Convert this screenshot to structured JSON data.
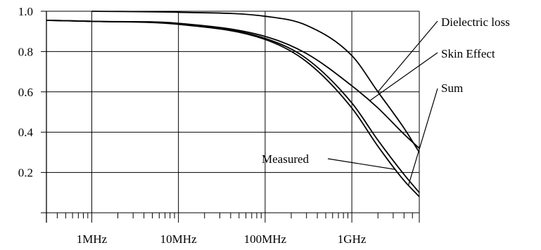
{
  "chart_data": {
    "type": "line",
    "title": "",
    "xlabel": "",
    "ylabel": "",
    "x_scale": "log",
    "xlim": [
      300000,
      6000000000
    ],
    "ylim": [
      0,
      1.0
    ],
    "grid": true,
    "legend": "none",
    "x_ticks": [
      {
        "value": 1000000,
        "label": "1MHz"
      },
      {
        "value": 10000000,
        "label": "10MHz"
      },
      {
        "value": 100000000,
        "label": "100MHz"
      },
      {
        "value": 1000000000,
        "label": "1GHz"
      }
    ],
    "y_ticks": [
      {
        "value": 0.2,
        "label": "0.2"
      },
      {
        "value": 0.4,
        "label": "0.4"
      },
      {
        "value": 0.6,
        "label": "0.6"
      },
      {
        "value": 0.8,
        "label": "0.8"
      },
      {
        "value": 1.0,
        "label": "1.0"
      }
    ],
    "series": [
      {
        "name": "Dielectric loss",
        "x": [
          1000000,
          10000000,
          100000000,
          300000000,
          1000000000,
          2000000000,
          4000000000,
          6000000000
        ],
        "y": [
          1.0,
          0.995,
          0.975,
          0.93,
          0.78,
          0.6,
          0.42,
          0.3
        ]
      },
      {
        "name": "Skin Effect",
        "x": [
          300000,
          1000000,
          10000000,
          100000000,
          300000000,
          1000000000,
          2000000000,
          4000000000,
          6000000000
        ],
        "y": [
          0.955,
          0.95,
          0.94,
          0.875,
          0.79,
          0.63,
          0.52,
          0.39,
          0.32
        ]
      },
      {
        "name": "Sum",
        "x": [
          300000,
          1000000,
          10000000,
          100000000,
          300000000,
          1000000000,
          2000000000,
          4000000000,
          6000000000
        ],
        "y": [
          0.955,
          0.95,
          0.935,
          0.86,
          0.75,
          0.52,
          0.33,
          0.16,
          0.08
        ]
      },
      {
        "name": "Measured",
        "x": [
          300000,
          1000000,
          10000000,
          100000000,
          300000000,
          1000000000,
          2000000000,
          4000000000,
          6000000000
        ],
        "y": [
          0.955,
          0.95,
          0.937,
          0.865,
          0.765,
          0.545,
          0.36,
          0.19,
          0.1
        ]
      }
    ],
    "annotations": [
      {
        "text": "Dielectric loss",
        "series": "Dielectric loss",
        "pointer_x": 2000000000
      },
      {
        "text": "Skin Effect",
        "series": "Skin Effect",
        "pointer_x": 1600000000
      },
      {
        "text": "Sum",
        "series": "Sum",
        "pointer_x": 4500000000
      },
      {
        "text": "Measured",
        "series": "Sum",
        "pointer_x": 3200000000
      }
    ]
  },
  "colors": {
    "axis": "#000000",
    "grid": "#000000",
    "curve": "#000000",
    "background": "#ffffff"
  }
}
